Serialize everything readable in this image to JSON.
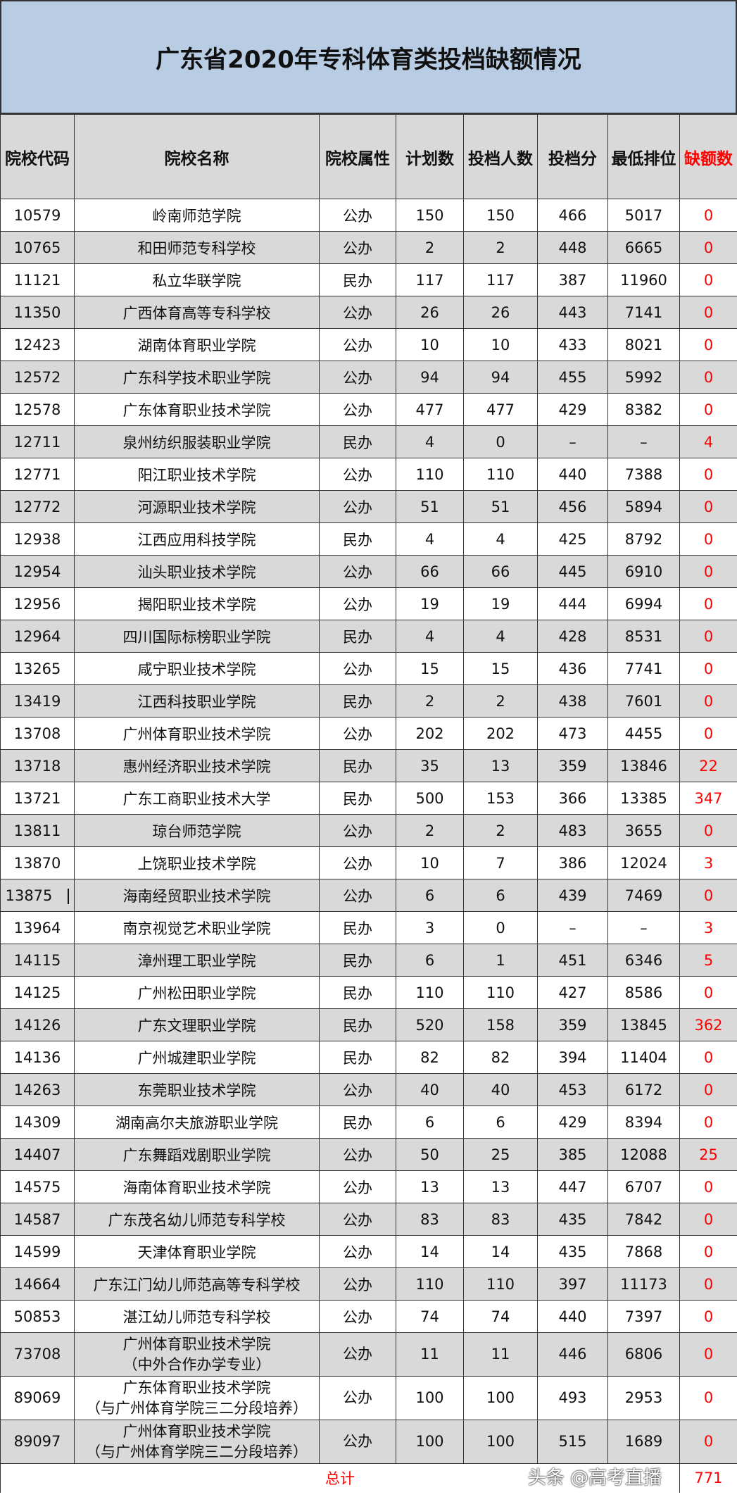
{
  "title": "广东省2020年专科体育类投档缺额情况",
  "headers": [
    "院校代码",
    "院校名称",
    "院校属性",
    "计划数",
    "投档人数",
    "投档分",
    "最低排位",
    "缺额数"
  ],
  "rows": [
    [
      "10579",
      "岭南师范学院",
      "公办",
      "150",
      "150",
      "466",
      "5017",
      "0"
    ],
    [
      "10765",
      "和田师范专科学校",
      "公办",
      "2",
      "2",
      "448",
      "6665",
      "0"
    ],
    [
      "11121",
      "私立华联学院",
      "民办",
      "117",
      "117",
      "387",
      "11960",
      "0"
    ],
    [
      "11350",
      "广西体育高等专科学校",
      "公办",
      "26",
      "26",
      "443",
      "7141",
      "0"
    ],
    [
      "12423",
      "湖南体育职业学院",
      "公办",
      "10",
      "10",
      "433",
      "8021",
      "0"
    ],
    [
      "12572",
      "广东科学技术职业学院",
      "公办",
      "94",
      "94",
      "455",
      "5992",
      "0"
    ],
    [
      "12578",
      "广东体育职业技术学院",
      "公办",
      "477",
      "477",
      "429",
      "8382",
      "0"
    ],
    [
      "12711",
      "泉州纺织服装职业学院",
      "民办",
      "4",
      "0",
      "–",
      "–",
      "4"
    ],
    [
      "12771",
      "阳江职业技术学院",
      "公办",
      "110",
      "110",
      "440",
      "7388",
      "0"
    ],
    [
      "12772",
      "河源职业技术学院",
      "公办",
      "51",
      "51",
      "456",
      "5894",
      "0"
    ],
    [
      "12938",
      "江西应用科技学院",
      "民办",
      "4",
      "4",
      "425",
      "8792",
      "0"
    ],
    [
      "12954",
      "汕头职业技术学院",
      "公办",
      "66",
      "66",
      "445",
      "6910",
      "0"
    ],
    [
      "12956",
      "揭阳职业技术学院",
      "公办",
      "19",
      "19",
      "444",
      "6994",
      "0"
    ],
    [
      "12964",
      "四川国际标榜职业学院",
      "民办",
      "4",
      "4",
      "428",
      "8531",
      "0"
    ],
    [
      "13265",
      "咸宁职业技术学院",
      "公办",
      "15",
      "15",
      "436",
      "7741",
      "0"
    ],
    [
      "13419",
      "江西科技职业学院",
      "民办",
      "2",
      "2",
      "438",
      "7601",
      "0"
    ],
    [
      "13708",
      "广州体育职业技术学院",
      "公办",
      "202",
      "202",
      "473",
      "4455",
      "0"
    ],
    [
      "13718",
      "惠州经济职业技术学院",
      "民办",
      "35",
      "13",
      "359",
      "13846",
      "22"
    ],
    [
      "13721",
      "广东工商职业技术大学",
      "民办",
      "500",
      "153",
      "366",
      "13385",
      "347"
    ],
    [
      "13811",
      "琼台师范学院",
      "公办",
      "2",
      "2",
      "483",
      "3655",
      "0"
    ],
    [
      "13870",
      "上饶职业技术学院",
      "公办",
      "10",
      "7",
      "386",
      "12024",
      "3"
    ],
    [
      "13875",
      "海南经贸职业技术学院",
      "公办",
      "6",
      "6",
      "439",
      "7469",
      "0"
    ],
    [
      "13964",
      "南京视觉艺术职业学院",
      "民办",
      "3",
      "0",
      "–",
      "–",
      "3"
    ],
    [
      "14115",
      "漳州理工职业学院",
      "民办",
      "6",
      "1",
      "451",
      "6346",
      "5"
    ],
    [
      "14125",
      "广州松田职业学院",
      "民办",
      "110",
      "110",
      "427",
      "8586",
      "0"
    ],
    [
      "14126",
      "广东文理职业学院",
      "民办",
      "520",
      "158",
      "359",
      "13845",
      "362"
    ],
    [
      "14136",
      "广州城建职业学院",
      "民办",
      "82",
      "82",
      "394",
      "11404",
      "0"
    ],
    [
      "14263",
      "东莞职业技术学院",
      "公办",
      "40",
      "40",
      "453",
      "6172",
      "0"
    ],
    [
      "14309",
      "湖南高尔夫旅游职业学院",
      "民办",
      "6",
      "6",
      "429",
      "8394",
      "0"
    ],
    [
      "14407",
      "广东舞蹈戏剧职业学院",
      "公办",
      "50",
      "25",
      "385",
      "12088",
      "25"
    ],
    [
      "14575",
      "海南体育职业技术学院",
      "公办",
      "13",
      "13",
      "447",
      "6707",
      "0"
    ],
    [
      "14587",
      "广东茂名幼儿师范专科学校",
      "公办",
      "83",
      "83",
      "435",
      "7842",
      "0"
    ],
    [
      "14599",
      "天津体育职业学院",
      "公办",
      "14",
      "14",
      "435",
      "7868",
      "0"
    ],
    [
      "14664",
      "广东江门幼儿师范高等专科学校",
      "公办",
      "110",
      "110",
      "397",
      "11173",
      "0"
    ],
    [
      "50853",
      "湛江幼儿师范专科学校",
      "公办",
      "74",
      "74",
      "440",
      "7397",
      "0"
    ]
  ],
  "tall_rows": [
    [
      "73708",
      "广州体育职业技术学院",
      "（中外合作办学专业）",
      "公办",
      "11",
      "11",
      "446",
      "6806",
      "0"
    ],
    [
      "89069",
      "广东体育职业技术学院",
      "（与广州体育学院三二分段培养）",
      "公办",
      "100",
      "100",
      "493",
      "2953",
      "0"
    ],
    [
      "89097",
      "广州体育职业技术学院",
      "（与广州体育学院三二分段培养）",
      "公办",
      "100",
      "100",
      "515",
      "1689",
      "0"
    ]
  ],
  "total": {
    "label": "总计",
    "value": "771"
  },
  "watermark": "头条 @高考直播",
  "colors": {
    "title_bg": "#b8cce4",
    "header_bg": "#d9d9d9",
    "stripe": "#d9d9d9",
    "shortfall": "#ff0000"
  }
}
